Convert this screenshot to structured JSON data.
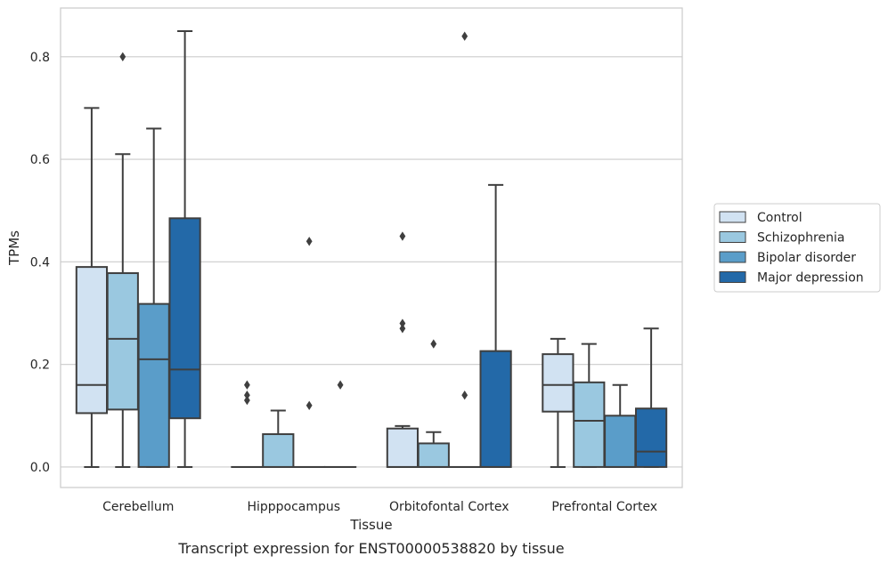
{
  "caption": "Transcript expression for ENST00000538820 by tissue",
  "chart_data": {
    "type": "boxplot",
    "xlabel": "Tissue",
    "ylabel": "TPMs",
    "ylim": [
      -0.04,
      0.895
    ],
    "yticks": [
      0.0,
      0.2,
      0.4,
      0.6,
      0.8
    ],
    "ytick_labels": [
      "0.0",
      "0.2",
      "0.4",
      "0.6",
      "0.8"
    ],
    "grid": "horizontal",
    "legend_position": "right",
    "categories": [
      "Cerebellum",
      "Hipppocampus",
      "Orbitofontal Cortex",
      "Prefrontal Cortex"
    ],
    "series": [
      {
        "name": "Control",
        "color": "#d1e2f2",
        "boxes": [
          {
            "whisker_low": 0.0,
            "q1": 0.105,
            "median": 0.16,
            "q3": 0.39,
            "whisker_high": 0.7,
            "outliers": []
          },
          {
            "whisker_low": 0.0,
            "q1": 0.0,
            "median": 0.0,
            "q3": 0.0,
            "whisker_high": 0.0,
            "outliers": [
              0.13,
              0.14,
              0.16
            ]
          },
          {
            "whisker_low": 0.0,
            "q1": 0.0,
            "median": 0.0,
            "q3": 0.075,
            "whisker_high": 0.08,
            "outliers": [
              0.27,
              0.28,
              0.45
            ]
          },
          {
            "whisker_low": 0.0,
            "q1": 0.108,
            "median": 0.16,
            "q3": 0.22,
            "whisker_high": 0.25,
            "outliers": []
          }
        ]
      },
      {
        "name": "Schizophrenia",
        "color": "#9ac8e0",
        "boxes": [
          {
            "whisker_low": 0.0,
            "q1": 0.112,
            "median": 0.25,
            "q3": 0.378,
            "whisker_high": 0.61,
            "outliers": [
              0.8
            ]
          },
          {
            "whisker_low": 0.0,
            "q1": 0.0,
            "median": 0.0,
            "q3": 0.064,
            "whisker_high": 0.11,
            "outliers": []
          },
          {
            "whisker_low": 0.0,
            "q1": 0.0,
            "median": 0.0,
            "q3": 0.046,
            "whisker_high": 0.068,
            "outliers": [
              0.24
            ]
          },
          {
            "whisker_low": 0.0,
            "q1": 0.0,
            "median": 0.09,
            "q3": 0.165,
            "whisker_high": 0.24,
            "outliers": []
          }
        ]
      },
      {
        "name": "Bipolar disorder",
        "color": "#5a9dc9",
        "boxes": [
          {
            "whisker_low": 0.0,
            "q1": 0.0,
            "median": 0.21,
            "q3": 0.318,
            "whisker_high": 0.66,
            "outliers": []
          },
          {
            "whisker_low": 0.0,
            "q1": 0.0,
            "median": 0.0,
            "q3": 0.0,
            "whisker_high": 0.0,
            "outliers": [
              0.12,
              0.44
            ]
          },
          {
            "whisker_low": 0.0,
            "q1": 0.0,
            "median": 0.0,
            "q3": 0.0,
            "whisker_high": 0.0,
            "outliers": [
              0.14,
              0.84
            ]
          },
          {
            "whisker_low": 0.0,
            "q1": 0.0,
            "median": 0.0,
            "q3": 0.1,
            "whisker_high": 0.16,
            "outliers": []
          }
        ]
      },
      {
        "name": "Major depression",
        "color": "#2369a8",
        "boxes": [
          {
            "whisker_low": 0.0,
            "q1": 0.095,
            "median": 0.19,
            "q3": 0.485,
            "whisker_high": 0.85,
            "outliers": []
          },
          {
            "whisker_low": 0.0,
            "q1": 0.0,
            "median": 0.0,
            "q3": 0.0,
            "whisker_high": 0.0,
            "outliers": [
              0.16
            ]
          },
          {
            "whisker_low": 0.0,
            "q1": 0.0,
            "median": 0.0,
            "q3": 0.226,
            "whisker_high": 0.55,
            "outliers": []
          },
          {
            "whisker_low": 0.0,
            "q1": 0.0,
            "median": 0.03,
            "q3": 0.114,
            "whisker_high": 0.27,
            "outliers": []
          }
        ]
      }
    ]
  }
}
